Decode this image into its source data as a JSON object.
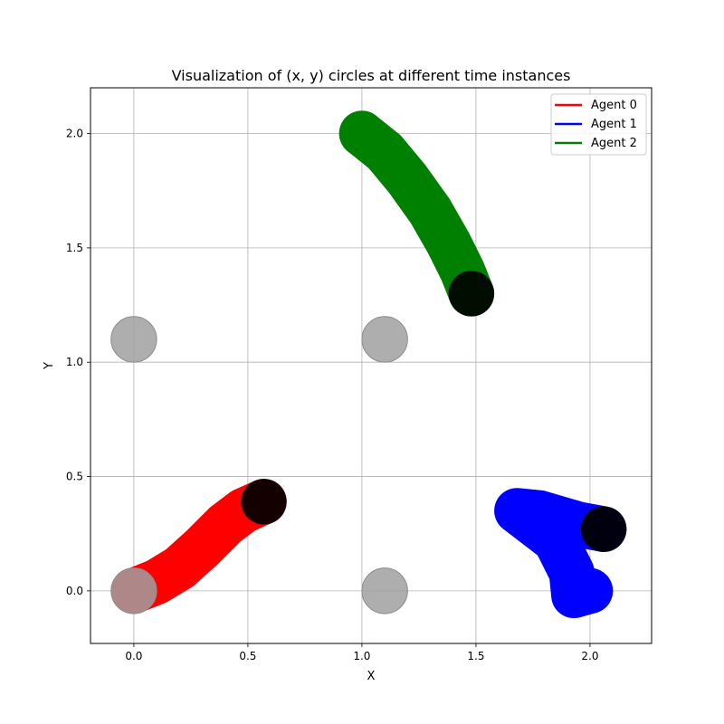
{
  "chart_data": {
    "type": "trajectory",
    "title": "Visualization of (x, y) circles at different time instances",
    "xlabel": "X",
    "ylabel": "Y",
    "xlim": [
      -0.19,
      2.27
    ],
    "ylim": [
      -0.23,
      2.2
    ],
    "xticks": [
      0.0,
      0.5,
      1.0,
      1.5,
      2.0
    ],
    "yticks": [
      0.0,
      0.5,
      1.0,
      1.5,
      2.0
    ],
    "xtick_labels": [
      "0.0",
      "0.5",
      "1.0",
      "1.5",
      "2.0"
    ],
    "ytick_labels": [
      "0.0",
      "0.5",
      "1.0",
      "1.5",
      "2.0"
    ],
    "grid": true,
    "legend_position": "top-right",
    "agent_radius": 0.1,
    "series": [
      {
        "name": "Agent 0",
        "color": "#ff0000",
        "end_color": "#150000",
        "path": [
          [
            0.0,
            0.0
          ],
          [
            0.1,
            0.04
          ],
          [
            0.2,
            0.1
          ],
          [
            0.3,
            0.19
          ],
          [
            0.4,
            0.29
          ],
          [
            0.48,
            0.35
          ],
          [
            0.57,
            0.39
          ]
        ]
      },
      {
        "name": "Agent 1",
        "color": "#0000ff",
        "end_color": "#00000e",
        "path": [
          [
            2.0,
            0.0
          ],
          [
            1.93,
            -0.02
          ],
          [
            1.92,
            0.08
          ],
          [
            1.85,
            0.22
          ],
          [
            1.68,
            0.35
          ],
          [
            1.78,
            0.34
          ],
          [
            1.95,
            0.29
          ],
          [
            2.06,
            0.27
          ]
        ]
      },
      {
        "name": "Agent 2",
        "color": "#008000",
        "end_color": "#000d00",
        "path": [
          [
            1.0,
            2.0
          ],
          [
            1.1,
            1.92
          ],
          [
            1.2,
            1.8
          ],
          [
            1.3,
            1.66
          ],
          [
            1.38,
            1.52
          ],
          [
            1.44,
            1.4
          ],
          [
            1.48,
            1.3
          ]
        ]
      }
    ],
    "obstacles": {
      "color": "#a0a0a0",
      "points": [
        [
          0.0,
          1.1
        ],
        [
          1.1,
          1.1
        ],
        [
          0.0,
          0.0
        ],
        [
          1.1,
          0.0
        ]
      ]
    }
  }
}
